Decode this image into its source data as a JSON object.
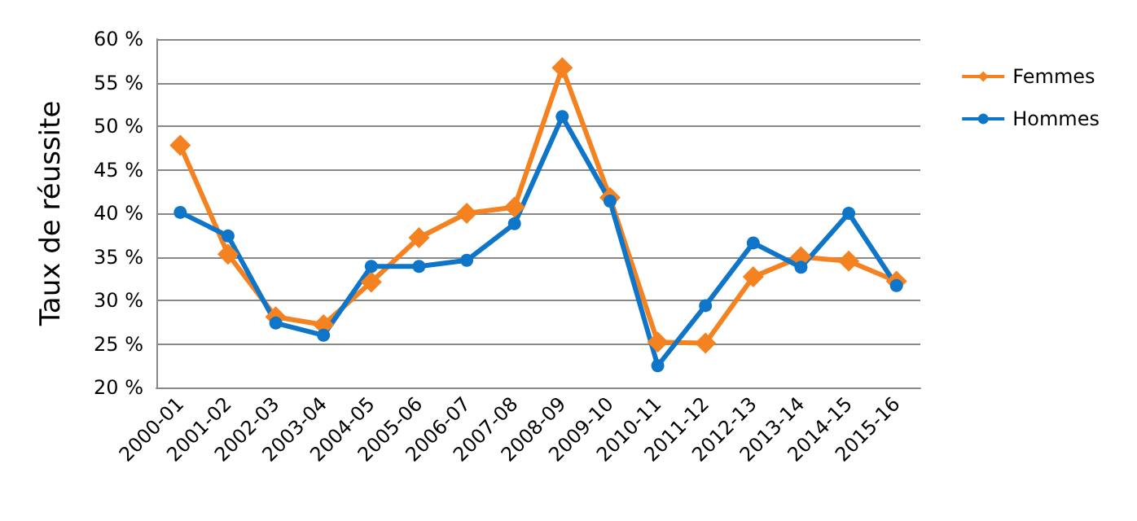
{
  "chart_data": {
    "type": "line",
    "ylabel": "Taux de réussite",
    "categories": [
      "2000-01",
      "2001-02",
      "2002-03",
      "2003-04",
      "2004-05",
      "2005-06",
      "2006-07",
      "2007-08",
      "2008-09",
      "2009-10",
      "2010-11",
      "2011-12",
      "2012-13",
      "2013-14",
      "2014-15",
      "2015-16"
    ],
    "series": [
      {
        "name": "Femmes",
        "color": "#f58220",
        "marker": "diamond",
        "values": [
          47.8,
          35.3,
          28.1,
          27.2,
          32.1,
          37.2,
          40,
          40.7,
          56.7,
          41.8,
          25.2,
          25.1,
          32.7,
          35,
          34.5,
          32.2
        ]
      },
      {
        "name": "Hommes",
        "color": "#0f75c9",
        "marker": "circle",
        "values": [
          40.1,
          37.4,
          27.4,
          26,
          33.9,
          33.9,
          34.6,
          38.8,
          51.1,
          41.4,
          22.5,
          29.4,
          36.6,
          33.8,
          40,
          31.7
        ]
      }
    ],
    "ylim": [
      20,
      60
    ],
    "yticks": [
      {
        "value": 20,
        "label": "20 %"
      },
      {
        "value": 25,
        "label": "25 %"
      },
      {
        "value": 30,
        "label": "30 %"
      },
      {
        "value": 35,
        "label": "35 %"
      },
      {
        "value": 40,
        "label": "40 %"
      },
      {
        "value": 45,
        "label": "45 %"
      },
      {
        "value": 50,
        "label": "50 %"
      },
      {
        "value": 55,
        "label": "55 %"
      },
      {
        "value": 60,
        "label": "60 %"
      }
    ],
    "grid": "y",
    "legend": "right",
    "line_style": "solid"
  }
}
